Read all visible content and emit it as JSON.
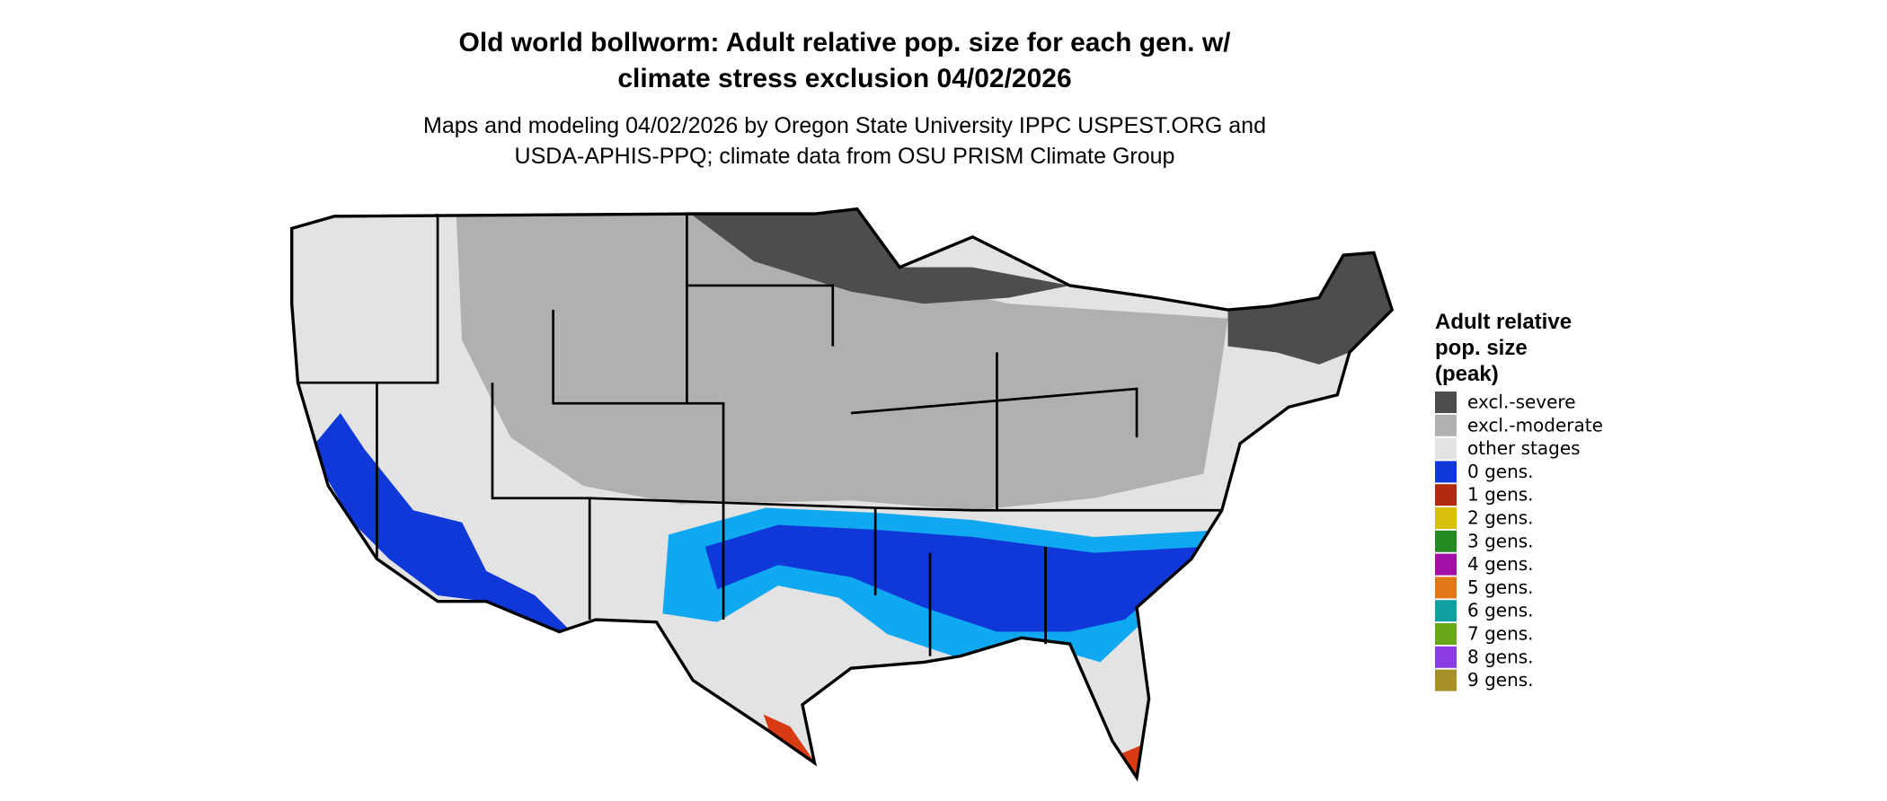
{
  "header": {
    "title_lines": [
      "Old world bollworm: Adult relative pop. size for each gen. w/",
      "climate stress exclusion 04/02/2026"
    ],
    "subtitle_lines": [
      "Maps and modeling 04/02/2026 by Oregon State University IPPC USPEST.ORG and",
      "USDA-APHIS-PPQ; climate data from OSU PRISM Climate Group"
    ]
  },
  "legend": {
    "title_lines": [
      "Adult relative",
      "pop. size",
      "(peak)"
    ],
    "items": [
      {
        "label": "excl.-severe",
        "color": "#4d4d4d"
      },
      {
        "label": "excl.-moderate",
        "color": "#b0b0b0"
      },
      {
        "label": "other stages",
        "color": "#e3e3e3"
      },
      {
        "label": "0 gens.",
        "color": "#1038d8"
      },
      {
        "label": "1 gens.",
        "color": "#b22a12"
      },
      {
        "label": "2 gens.",
        "color": "#d8c00a"
      },
      {
        "label": "3 gens.",
        "color": "#238b22"
      },
      {
        "label": "4 gens.",
        "color": "#a010a8"
      },
      {
        "label": "5 gens.",
        "color": "#e07818"
      },
      {
        "label": "6 gens.",
        "color": "#10a0a0"
      },
      {
        "label": "7 gens.",
        "color": "#68a818"
      },
      {
        "label": "8 gens.",
        "color": "#8a3ce0"
      },
      {
        "label": "9 gens.",
        "color": "#a89028"
      }
    ]
  }
}
